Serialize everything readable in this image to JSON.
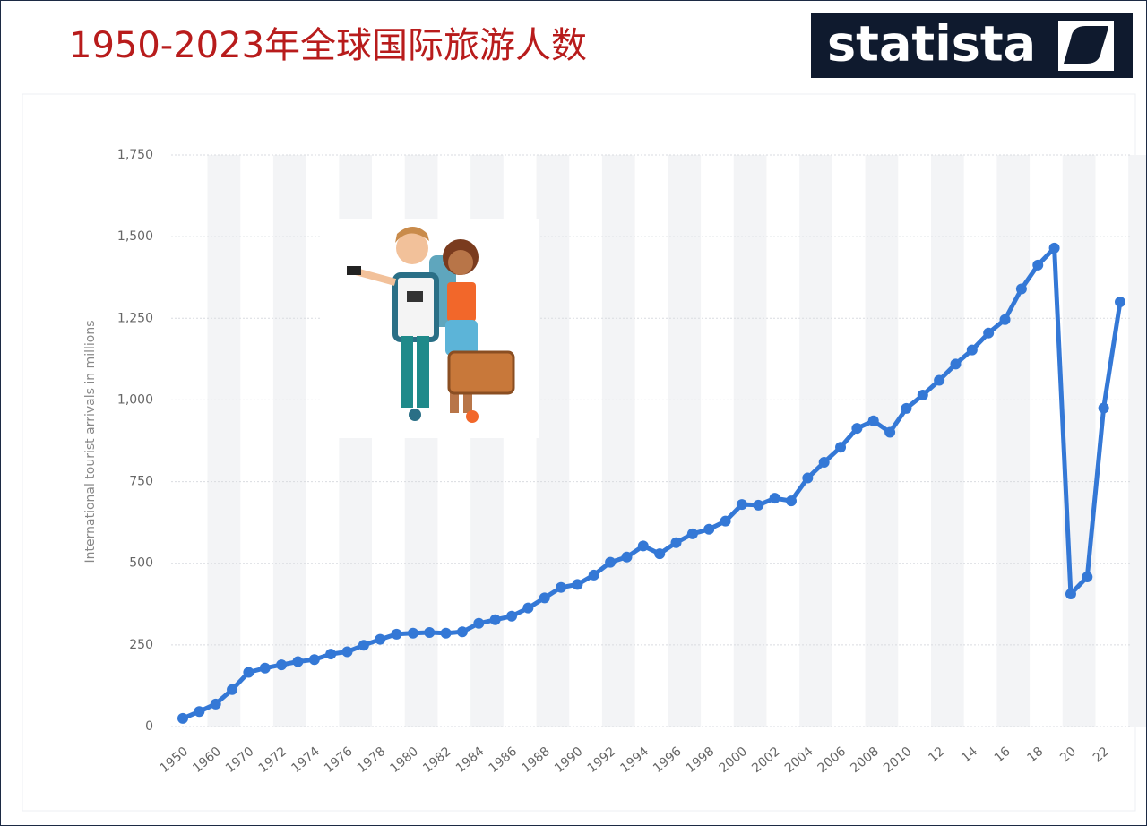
{
  "chart_data": {
    "type": "line",
    "title": "1950-2023年全球国际旅游人数",
    "logo": "statista",
    "y_label": "International tourist arrivals in millions",
    "color": "#3478d6",
    "categories": [
      "1950",
      null,
      "1960",
      null,
      "1970",
      null,
      "1972",
      null,
      "1974",
      null,
      "1976",
      null,
      "1978",
      null,
      "1980",
      null,
      "1982",
      null,
      "1984",
      null,
      "1986",
      null,
      "1988",
      null,
      "1990",
      null,
      "1992",
      null,
      "1994",
      null,
      "1996",
      null,
      "1998",
      null,
      "2000",
      null,
      "2002",
      null,
      "2004",
      null,
      "2006",
      null,
      "2008",
      null,
      "2010",
      null,
      "12",
      null,
      "14",
      null,
      "16",
      null,
      "18",
      null,
      "20",
      null,
      "22",
      null
    ],
    "values": [
      25,
      46,
      69,
      113,
      166,
      179,
      189,
      199,
      205,
      222,
      229,
      249,
      267,
      283,
      286,
      288,
      286,
      290,
      316,
      327,
      338,
      363,
      394,
      426,
      435,
      464,
      503,
      519,
      553,
      529,
      563,
      590,
      604,
      629,
      680,
      678,
      699,
      691,
      761,
      809,
      855,
      913,
      936,
      901,
      974,
      1015,
      1060,
      1110,
      1153,
      1205,
      1246,
      1340,
      1413,
      1465,
      406,
      458,
      975,
      1300
    ],
    "ylim": [
      0,
      1750
    ],
    "yticks": [
      0,
      250,
      500,
      750,
      {
        "value": 1000,
        "label": "1,000"
      },
      {
        "value": 1250,
        "label": "1,250"
      },
      {
        "value": 1500,
        "label": "1,500"
      },
      {
        "value": 1750,
        "label": "1,750"
      }
    ],
    "grid": true
  }
}
